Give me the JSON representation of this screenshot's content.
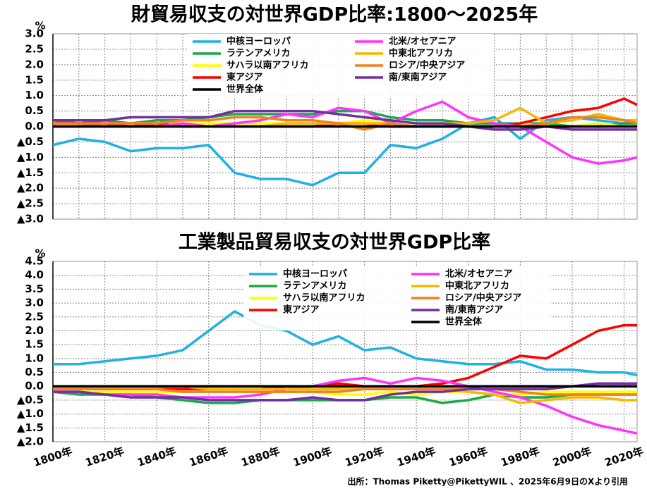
{
  "chart_data": [
    {
      "type": "line",
      "title": "財貿易収支の対世界GDP比率:1800～2025年",
      "ylabel": "%",
      "x": [
        1800,
        1810,
        1820,
        1830,
        1840,
        1850,
        1860,
        1870,
        1880,
        1890,
        1900,
        1910,
        1920,
        1930,
        1940,
        1950,
        1960,
        1970,
        1980,
        1990,
        2000,
        2010,
        2020,
        2025
      ],
      "xlim": [
        1800,
        2025
      ],
      "xticks": [
        1800,
        1810,
        1820,
        1830,
        1840,
        1850,
        1860,
        1870,
        1880,
        1890,
        1900,
        1910,
        1920,
        1930,
        1940,
        1950,
        1960,
        1970,
        1980,
        1990,
        2000,
        2010,
        2020
      ],
      "ylim": [
        -3,
        3
      ],
      "yticks": [
        {
          "value": 3,
          "label": "3.0"
        },
        2.5,
        {
          "value": 2,
          "label": "2.0"
        },
        1.5,
        {
          "value": 1,
          "label": "1.0"
        },
        0.5,
        {
          "value": 0,
          "label": "0.0"
        },
        {
          "value": -0.5,
          "label": "▲0.5"
        },
        {
          "value": -1,
          "label": "▲1.0"
        },
        {
          "value": -1.5,
          "label": "▲1.5"
        },
        {
          "value": -2,
          "label": "▲2.0"
        },
        {
          "value": -2.5,
          "label": "▲2.5"
        },
        {
          "value": -3,
          "label": "▲3.0"
        }
      ],
      "grid": true,
      "series": [
        {
          "name": "中核ヨーロッパ",
          "color": "#1fb0e6",
          "values": [
            -0.6,
            -0.4,
            -0.5,
            -0.8,
            -0.7,
            -0.7,
            -0.6,
            -1.5,
            -1.7,
            -1.7,
            -1.9,
            -1.5,
            -1.5,
            -0.6,
            -0.7,
            -0.4,
            0.1,
            0.3,
            -0.4,
            0.2,
            0.3,
            0.2,
            0.1,
            0.1
          ]
        },
        {
          "name": "ラテンアメリカ",
          "color": "#1aa84a",
          "values": [
            0.2,
            0.1,
            0.2,
            0.1,
            0.2,
            0.2,
            0.3,
            0.4,
            0.4,
            0.4,
            0.4,
            0.5,
            0.5,
            0.3,
            0.2,
            0.2,
            0.1,
            0.1,
            0.1,
            0.1,
            0,
            0,
            0.1,
            0.1
          ]
        },
        {
          "name": "サハラ以南アフリカ",
          "color": "#ffff00",
          "values": [
            0,
            0,
            0.1,
            0.1,
            0.1,
            0.1,
            0.1,
            0.1,
            0.1,
            0.1,
            0.1,
            0.1,
            0.2,
            0.1,
            0,
            0,
            0,
            0,
            0.1,
            0,
            0,
            0.1,
            0,
            0
          ]
        },
        {
          "name": "東アジア",
          "color": "#ff0000",
          "values": [
            0.1,
            0.1,
            0.1,
            0,
            0.1,
            0,
            0,
            0,
            0,
            0,
            0,
            0.1,
            0.1,
            0,
            0,
            0,
            0,
            0,
            0.1,
            0.3,
            0.5,
            0.6,
            0.9,
            0.7
          ]
        },
        {
          "name": "世界全体",
          "color": "#000000",
          "values": [
            0,
            0,
            0,
            0,
            0,
            0,
            0,
            0,
            0,
            0,
            0,
            0,
            0,
            0,
            0,
            0,
            0,
            0,
            0,
            0,
            0,
            0,
            0,
            0
          ]
        },
        {
          "name": "北米/オセアニア",
          "color": "#ff33ff",
          "values": [
            0.1,
            0.1,
            0,
            0,
            0,
            0.1,
            0,
            0.1,
            0.2,
            0.4,
            0.3,
            0.6,
            0.5,
            0.1,
            0.5,
            0.8,
            0.3,
            0.1,
            0,
            -0.5,
            -1,
            -1.2,
            -1.1,
            -1
          ]
        },
        {
          "name": "中東北アフリカ",
          "color": "#f5b800",
          "values": [
            0,
            0,
            0,
            0,
            0,
            0,
            0,
            0,
            0,
            0.1,
            0.1,
            0.1,
            0.1,
            0.1,
            0,
            0.1,
            0.1,
            0.2,
            0.6,
            0.1,
            0.2,
            0.4,
            0.2,
            0.2
          ]
        },
        {
          "name": "ロシア/中央アジア",
          "color": "#f08020",
          "values": [
            0.1,
            0.1,
            0.1,
            0.1,
            0.1,
            0.2,
            0.2,
            0.3,
            0.3,
            0.2,
            0.2,
            0.1,
            -0.1,
            0.1,
            0,
            0,
            0,
            0,
            0,
            0.1,
            0.3,
            0.3,
            0.2,
            0.1
          ]
        },
        {
          "name": "南/東南アジア",
          "color": "#7030a0",
          "values": [
            0.2,
            0.2,
            0.2,
            0.3,
            0.3,
            0.3,
            0.3,
            0.5,
            0.5,
            0.5,
            0.5,
            0.4,
            0.3,
            0.2,
            0.1,
            0.1,
            0,
            -0.1,
            -0.1,
            0,
            -0.1,
            -0.1,
            -0.1,
            -0.1
          ]
        }
      ]
    },
    {
      "type": "line",
      "title": "工業製品貿易収支の対世界GDP比率",
      "ylabel": "%",
      "x": [
        1800,
        1810,
        1820,
        1830,
        1840,
        1850,
        1860,
        1870,
        1880,
        1890,
        1900,
        1910,
        1920,
        1930,
        1940,
        1950,
        1960,
        1970,
        1980,
        1990,
        2000,
        2010,
        2020,
        2025
      ],
      "xlim": [
        1800,
        2025
      ],
      "xticks": [
        {
          "value": 1800,
          "label": "1800年"
        },
        {
          "value": 1820,
          "label": "1820年"
        },
        {
          "value": 1840,
          "label": "1840年"
        },
        {
          "value": 1860,
          "label": "1860年"
        },
        {
          "value": 1880,
          "label": "1880年"
        },
        {
          "value": 1900,
          "label": "1900年"
        },
        {
          "value": 1920,
          "label": "1920年"
        },
        {
          "value": 1940,
          "label": "1940年"
        },
        {
          "value": 1960,
          "label": "1960年"
        },
        {
          "value": 1980,
          "label": "1980年"
        },
        {
          "value": 2000,
          "label": "2000年"
        },
        {
          "value": 2020,
          "label": "2020年"
        }
      ],
      "ylim": [
        -2,
        4.5
      ],
      "yticks": [
        4.5,
        {
          "value": 4,
          "label": "4.0"
        },
        3.5,
        {
          "value": 3,
          "label": "3.0"
        },
        2.5,
        {
          "value": 2,
          "label": "2.0"
        },
        1.5,
        {
          "value": 1,
          "label": "1.0"
        },
        0.5,
        {
          "value": 0,
          "label": "0.0"
        },
        {
          "value": -0.5,
          "label": "▲0.5"
        },
        {
          "value": -1,
          "label": "▲1.0"
        },
        {
          "value": -1.5,
          "label": "▲1.5"
        },
        {
          "value": -2,
          "label": "▲2.0"
        }
      ],
      "grid": true,
      "series": [
        {
          "name": "中核ヨーロッパ",
          "color": "#1fb0e6",
          "values": [
            0.8,
            0.8,
            0.9,
            1,
            1.1,
            1.3,
            2,
            2.7,
            2.2,
            2,
            1.5,
            1.8,
            1.3,
            1.4,
            1,
            0.9,
            0.8,
            0.8,
            0.9,
            0.6,
            0.6,
            0.5,
            0.5,
            0.4
          ]
        },
        {
          "name": "ラテンアメリカ",
          "color": "#1aa84a",
          "values": [
            -0.2,
            -0.3,
            -0.3,
            -0.3,
            -0.4,
            -0.5,
            -0.6,
            -0.6,
            -0.5,
            -0.5,
            -0.5,
            -0.5,
            -0.5,
            -0.4,
            -0.4,
            -0.6,
            -0.5,
            -0.3,
            -0.4,
            -0.4,
            -0.3,
            -0.3,
            -0.3,
            -0.3
          ]
        },
        {
          "name": "サハラ以南アフリカ",
          "color": "#ffff00",
          "values": [
            -0.2,
            -0.2,
            -0.2,
            -0.2,
            -0.2,
            -0.2,
            -0.2,
            -0.2,
            -0.2,
            -0.2,
            -0.2,
            -0.3,
            -0.3,
            -0.2,
            -0.3,
            -0.2,
            -0.2,
            -0.3,
            -0.3,
            -0.2,
            -0.2,
            -0.2,
            -0.2,
            -0.2
          ]
        },
        {
          "name": "東アジア",
          "color": "#ff0000",
          "values": [
            -0.1,
            -0.1,
            -0.1,
            -0.1,
            -0.1,
            -0.1,
            -0.1,
            -0.1,
            -0.1,
            0,
            0,
            0.1,
            0,
            0,
            0,
            0.1,
            0.3,
            0.7,
            1.1,
            1,
            1.5,
            2,
            2.2,
            2.2
          ]
        },
        {
          "name": "北米/オセアニア",
          "color": "#ff33ff",
          "values": [
            -0.2,
            -0.2,
            -0.3,
            -0.3,
            -0.3,
            -0.4,
            -0.4,
            -0.4,
            -0.3,
            -0.1,
            0,
            0.2,
            0.3,
            0.1,
            0.3,
            0.2,
            0,
            -0.2,
            -0.4,
            -0.7,
            -1.1,
            -1.4,
            -1.6,
            -1.7
          ]
        },
        {
          "name": "中東北アフリカ",
          "color": "#f5b800",
          "values": [
            0,
            0,
            0,
            0,
            0,
            0,
            -0.1,
            -0.1,
            -0.1,
            -0.1,
            -0.1,
            -0.1,
            -0.1,
            -0.1,
            -0.1,
            -0.1,
            -0.2,
            -0.3,
            -0.6,
            -0.5,
            -0.4,
            -0.4,
            -0.5,
            -0.5
          ]
        },
        {
          "name": "ロシア/中央アジア",
          "color": "#f08020",
          "values": [
            -0.1,
            -0.1,
            -0.1,
            -0.1,
            -0.1,
            -0.2,
            -0.2,
            -0.2,
            -0.2,
            -0.2,
            -0.2,
            -0.2,
            -0.1,
            -0.1,
            -0.1,
            -0.1,
            -0.1,
            -0.1,
            -0.2,
            -0.3,
            -0.3,
            -0.3,
            -0.3,
            -0.3
          ]
        },
        {
          "name": "南/東南アジア",
          "color": "#7030a0",
          "values": [
            -0.2,
            -0.2,
            -0.3,
            -0.4,
            -0.4,
            -0.4,
            -0.5,
            -0.5,
            -0.5,
            -0.5,
            -0.4,
            -0.5,
            -0.5,
            -0.3,
            -0.2,
            -0.2,
            -0.1,
            -0.1,
            -0.1,
            -0.1,
            0,
            0.1,
            0.1,
            0.1
          ]
        },
        {
          "name": "世界全体",
          "color": "#000000",
          "values": [
            0,
            0,
            0,
            0,
            0,
            0,
            0,
            0,
            0,
            0,
            0,
            0,
            0,
            0,
            0,
            0,
            0,
            0,
            0,
            0,
            0,
            0,
            0,
            0
          ]
        }
      ]
    }
  ],
  "source": "出所：Thomas Piketty@PikettyWIL 、2025年6月9日のXより引用"
}
